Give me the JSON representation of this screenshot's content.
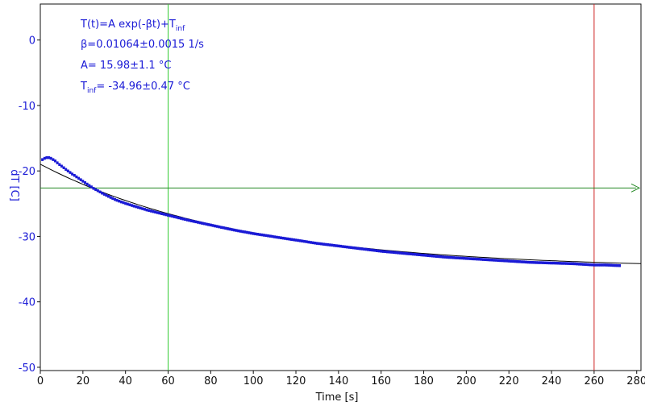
{
  "chart_data": {
    "type": "line",
    "xlabel": "Time [s]",
    "ylabel": "dT [C]",
    "xlim": [
      0,
      282
    ],
    "ylim": [
      -50.5,
      5.5
    ],
    "xticks": [
      0,
      20,
      40,
      60,
      80,
      100,
      120,
      140,
      160,
      180,
      200,
      220,
      240,
      260,
      280
    ],
    "yticks": [
      0,
      -10,
      -20,
      -30,
      -40,
      -50
    ],
    "grid": false,
    "annotations": {
      "formula_main": "T(t)=A exp(-βt)+T",
      "formula_sub": "inf",
      "beta": "β=0.01064±0.0015 1/s",
      "amplitude": "A= 15.98±1.1 °C",
      "tinf_main": "T",
      "tinf_sub": "inf",
      "tinf_value": "= -34.96±0.47 °C"
    },
    "fit": {
      "A": 15.98,
      "beta": 0.01064,
      "T_inf": -34.96,
      "x_range": [
        0,
        282
      ]
    },
    "series": [
      {
        "values_x": [
          1,
          2,
          3,
          4,
          5,
          6,
          7,
          8,
          10,
          12,
          15,
          20,
          25,
          30,
          35,
          40,
          50,
          60,
          70,
          80,
          90,
          100,
          110,
          120,
          130,
          140,
          150,
          160,
          170,
          180,
          190,
          200,
          210,
          220,
          230,
          240,
          250,
          260,
          265,
          272
        ],
        "values_y": [
          -18.3,
          -18.1,
          -18.0,
          -18.0,
          -18.1,
          -18.3,
          -18.5,
          -18.8,
          -19.3,
          -19.8,
          -20.5,
          -21.6,
          -22.7,
          -23.6,
          -24.4,
          -25.0,
          -26.0,
          -26.8,
          -27.6,
          -28.3,
          -29.0,
          -29.6,
          -30.1,
          -30.6,
          -31.1,
          -31.5,
          -31.9,
          -32.3,
          -32.6,
          -32.9,
          -33.2,
          -33.4,
          -33.6,
          -33.8,
          -34.0,
          -34.1,
          -34.2,
          -34.4,
          -34.4,
          -34.5
        ],
        "color": "#1a1ad6"
      }
    ],
    "cursors": {
      "vertical": [
        {
          "x": 60,
          "color": "#33cc33"
        },
        {
          "x": 260,
          "color": "#cc2222"
        }
      ],
      "horizontal": [
        {
          "y": -22.6,
          "color": "#228822"
        }
      ]
    },
    "colors": {
      "data": "#1a1ad6",
      "fit": "#000000",
      "axis_text": "#1a1ad6"
    }
  }
}
